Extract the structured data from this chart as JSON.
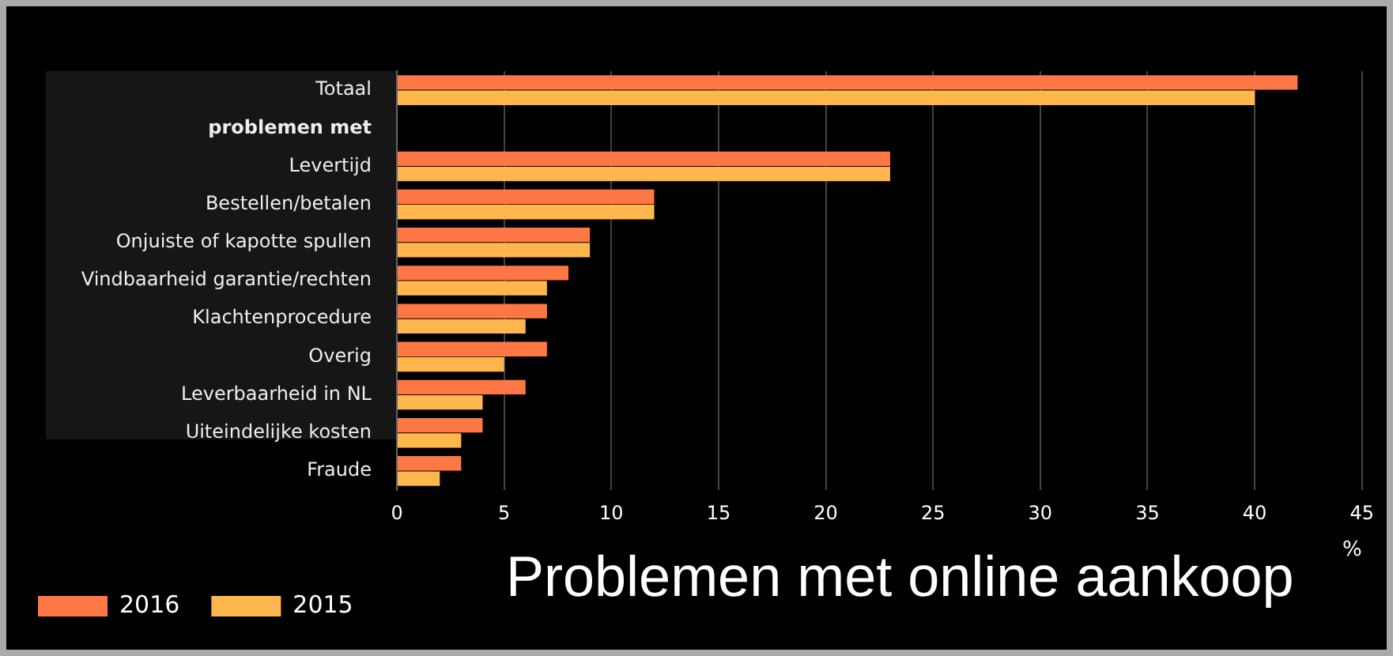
{
  "chart_data": {
    "type": "bar",
    "orientation": "horizontal",
    "title": "Problemen met online aankoop",
    "xlabel": "%",
    "categories": [
      "Totaal",
      "problemen met",
      "Levertijd",
      "Bestellen/betalen",
      "Onjuiste of kapotte spullen",
      "Vindbaarheid garantie/rechten",
      "Klachtenprocedure",
      "Overig",
      "Leverbaarheid in NL",
      "Uiteindelijke kosten",
      "Fraude"
    ],
    "series": [
      {
        "name": "2016",
        "color": "#ff7744",
        "values": [
          42,
          null,
          23,
          12,
          9,
          8,
          7,
          7,
          6,
          4,
          3
        ]
      },
      {
        "name": "2015",
        "color": "#ffb74d",
        "values": [
          40,
          null,
          23,
          12,
          9,
          7,
          6,
          5,
          4,
          3,
          2
        ]
      }
    ],
    "xlim": [
      0,
      45
    ],
    "xticks": [
      0,
      5,
      10,
      15,
      20,
      25,
      30,
      35,
      40,
      45
    ],
    "grid": "x",
    "legend": "bottom left"
  }
}
